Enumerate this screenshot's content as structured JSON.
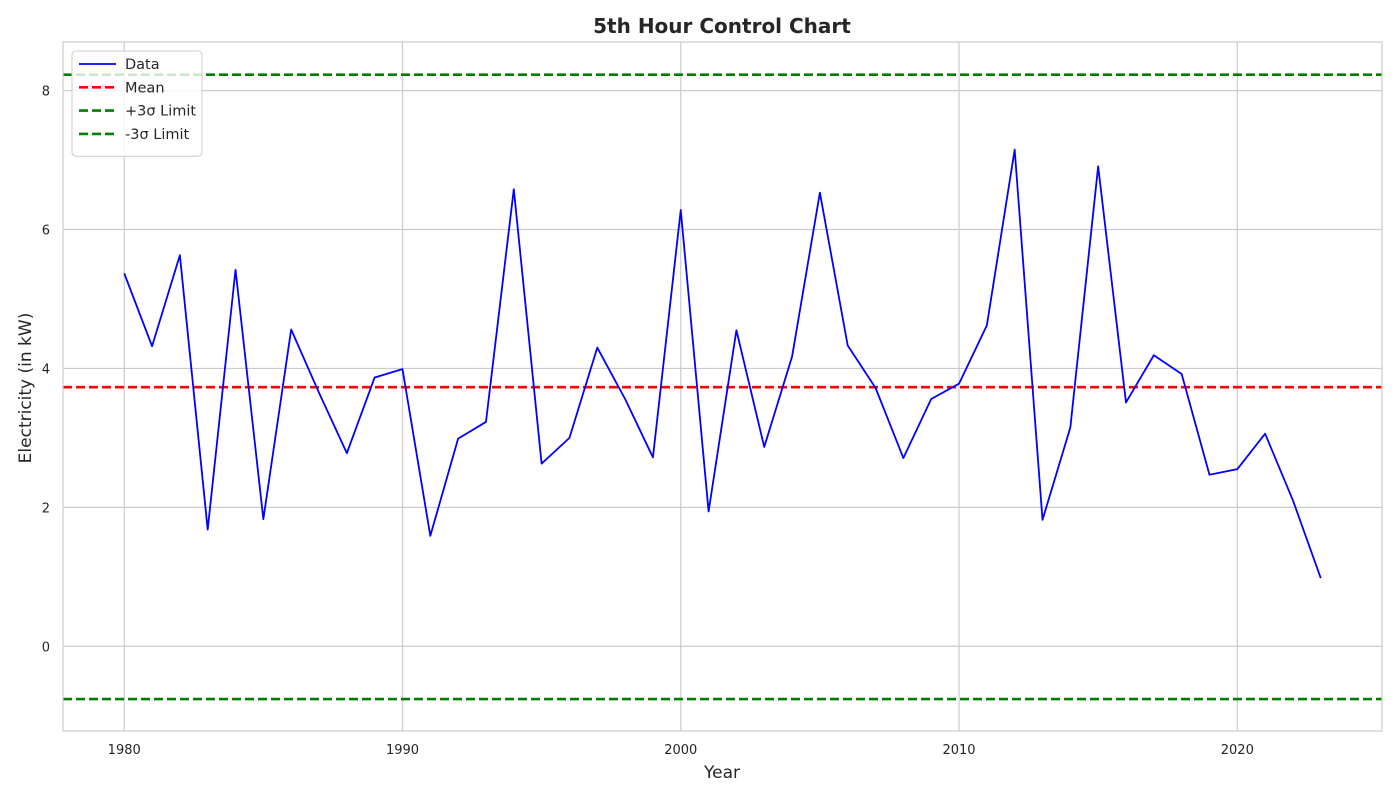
{
  "chart_data": {
    "type": "line",
    "title": "5th Hour Control Chart",
    "xlabel": "Year",
    "ylabel": "Electricity (in kW)",
    "xlim": [
      1977.8,
      2025.2
    ],
    "ylim": [
      -1.22,
      8.7
    ],
    "xticks": [
      1980,
      1990,
      2000,
      2010,
      2020
    ],
    "yticks": [
      0,
      2,
      4,
      6,
      8
    ],
    "grid": true,
    "legend_position": "upper-left",
    "x": [
      1980,
      1981,
      1982,
      1983,
      1984,
      1985,
      1986,
      1987,
      1988,
      1989,
      1990,
      1991,
      1992,
      1993,
      1994,
      1995,
      1996,
      1997,
      1998,
      1999,
      2000,
      2001,
      2002,
      2003,
      2004,
      2005,
      2006,
      2007,
      2008,
      2009,
      2010,
      2011,
      2012,
      2013,
      2014,
      2015,
      2016,
      2017,
      2018,
      2019,
      2020,
      2021,
      2022,
      2023
    ],
    "series": [
      {
        "name": "Data",
        "color": "#0000ff",
        "style": "solid",
        "values": [
          5.37,
          4.32,
          5.63,
          1.68,
          5.42,
          1.83,
          4.56,
          3.65,
          2.78,
          3.87,
          3.99,
          1.59,
          2.99,
          3.23,
          6.58,
          2.63,
          3.0,
          4.3,
          3.56,
          2.72,
          6.28,
          1.94,
          4.55,
          2.87,
          4.17,
          6.53,
          4.33,
          3.72,
          2.71,
          3.56,
          3.78,
          4.62,
          7.15,
          1.82,
          3.15,
          6.91,
          3.51,
          4.19,
          3.92,
          2.47,
          2.55,
          3.06,
          2.1,
          0.98
        ]
      }
    ],
    "reference_lines": [
      {
        "name": "Mean",
        "value": 3.73,
        "color": "#ff0000",
        "style": "dashed"
      },
      {
        "name": "+3σ Limit",
        "value": 8.23,
        "color": "#008000",
        "style": "dashed"
      },
      {
        "name": "-3σ Limit",
        "value": -0.76,
        "color": "#008000",
        "style": "dashed"
      }
    ]
  }
}
